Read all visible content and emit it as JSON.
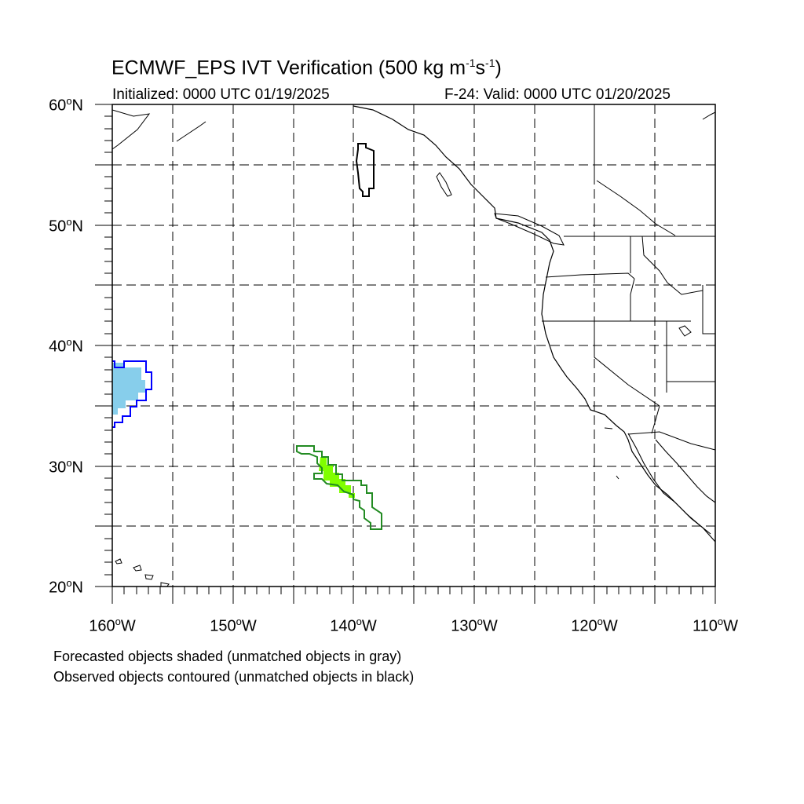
{
  "title": {
    "prefix": "ECMWF_EPS IVT Verification (500 kg m",
    "exp1": "-1",
    "mid": "s",
    "exp2": "-1",
    "suffix": ")"
  },
  "subtitle_left": "Initialized: 0000 UTC 01/19/2025",
  "subtitle_right": "F-24: Valid: 0000 UTC 01/20/2025",
  "lat_labels": [
    {
      "num": "60",
      "hemi": "N"
    },
    {
      "num": "50",
      "hemi": "N"
    },
    {
      "num": "40",
      "hemi": "N"
    },
    {
      "num": "30",
      "hemi": "N"
    },
    {
      "num": "20",
      "hemi": "N"
    }
  ],
  "lon_labels": [
    {
      "num": "160",
      "hemi": "W"
    },
    {
      "num": "150",
      "hemi": "W"
    },
    {
      "num": "140",
      "hemi": "W"
    },
    {
      "num": "130",
      "hemi": "W"
    },
    {
      "num": "120",
      "hemi": "W"
    },
    {
      "num": "110",
      "hemi": "W"
    }
  ],
  "notes": {
    "forecast": "Forecasted objects shaded (unmatched objects in gray)",
    "observed": "Observed objects contoured (unmatched objects in black)"
  },
  "map_extent": {
    "lon_min": -160,
    "lon_max": -110,
    "lat_min": 20,
    "lat_max": 60
  },
  "colors": {
    "match1_fill": "#87ceeb",
    "match1_contour": "#0000ff",
    "match2_fill": "#80ff00",
    "match2_contour": "#228b22",
    "unmatched_contour": "#000000"
  }
}
